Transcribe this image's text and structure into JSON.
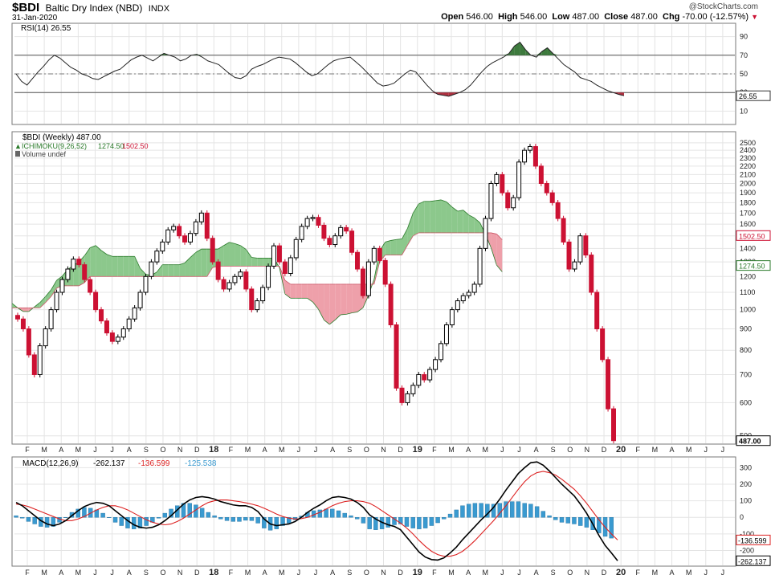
{
  "header": {
    "symbol": "$BDI",
    "name": "Baltic Dry Index (NBD)",
    "exchange": "INDX",
    "date": "31-Jan-2020",
    "watermark": "@StockCharts.com",
    "open_label": "Open",
    "open": "546.00",
    "high_label": "High",
    "high": "546.00",
    "low_label": "Low",
    "low": "487.00",
    "close_label": "Close",
    "close": "487.00",
    "chg_label": "Chg",
    "chg": "-70.00 (-12.57%)",
    "chg_arrow": "▼"
  },
  "colors": {
    "up": "#000000",
    "down": "#cc1133",
    "cloud_bull": "#8cc88c",
    "cloud_bear": "#eea0aa",
    "cloud_bull_line": "#2a7a2a",
    "cloud_bear_line": "#cc5566",
    "macd_hist": "#3a9ad0",
    "signal": "#dd2222",
    "grid": "#e4e4e4",
    "rsi_ob_fill": "#3d7a3d",
    "rsi_os_fill": "#b03040"
  },
  "chart_data": [
    {
      "type": "line",
      "panel": "RSI",
      "legend": "RSI(14) 26.55",
      "y_range": [
        0,
        100
      ],
      "y_ticks": [
        "90",
        "70",
        "50",
        "30",
        "10"
      ],
      "reference_lines": [
        70,
        50,
        30
      ],
      "last_value_label": "26.55",
      "series": [
        {
          "name": "RSI(14)",
          "values": [
            50,
            42,
            38,
            45,
            52,
            58,
            65,
            70,
            67,
            62,
            57,
            54,
            50,
            48,
            45,
            44,
            47,
            50,
            53,
            55,
            60,
            65,
            68,
            70,
            67,
            64,
            68,
            72,
            70,
            68,
            64,
            66,
            70,
            71,
            68,
            64,
            62,
            60,
            55,
            50,
            46,
            45,
            48,
            55,
            58,
            60,
            63,
            66,
            68,
            67,
            66,
            62,
            57,
            52,
            48,
            50,
            55,
            60,
            64,
            66,
            67,
            68,
            63,
            58,
            52,
            46,
            40,
            37,
            38,
            40,
            45,
            50,
            54,
            52,
            45,
            38,
            32,
            28,
            27,
            26,
            28,
            30,
            33,
            38,
            45,
            52,
            58,
            62,
            65,
            68,
            72,
            80,
            84,
            76,
            70,
            68,
            74,
            78,
            72,
            66,
            60,
            56,
            52,
            46,
            44,
            42,
            38,
            35,
            32,
            30,
            28,
            26.55
          ]
        }
      ]
    },
    {
      "type": "candlestick+ichimoku",
      "panel": "Price",
      "legend_price": "$BDI (Weekly) 487.00",
      "legend_ichimoku": "ICHIMOKU(9,26,52)",
      "ichimoku_senkou_a": "1274.50",
      "ichimoku_senkou_b": "1502.50",
      "legend_volume": "Volume undef",
      "scale": "log",
      "y_range": [
        480,
        2600
      ],
      "y_ticks": [
        "2500",
        "2400",
        "2300",
        "2200",
        "2100",
        "2000",
        "1900",
        "1800",
        "1700",
        "1600",
        "1500",
        "1400",
        "1300",
        "1200",
        "1100",
        "1000",
        "900",
        "800",
        "700",
        "600",
        "500"
      ],
      "last_close_label": "487.00",
      "x_labels": [
        "F",
        "M",
        "A",
        "M",
        "J",
        "J",
        "A",
        "S",
        "O",
        "N",
        "D",
        "18",
        "F",
        "M",
        "A",
        "M",
        "J",
        "J",
        "A",
        "S",
        "O",
        "N",
        "D",
        "19",
        "F",
        "M",
        "A",
        "M",
        "J",
        "J",
        "A",
        "S",
        "O",
        "N",
        "D",
        "20",
        "F",
        "M",
        "A",
        "M",
        "J",
        "J"
      ],
      "closes": [
        950,
        900,
        780,
        700,
        820,
        900,
        1000,
        1100,
        1180,
        1250,
        1320,
        1280,
        1180,
        1100,
        1000,
        940,
        880,
        840,
        860,
        900,
        950,
        1010,
        1100,
        1200,
        1300,
        1380,
        1450,
        1550,
        1580,
        1500,
        1450,
        1520,
        1620,
        1700,
        1480,
        1300,
        1180,
        1120,
        1160,
        1200,
        1230,
        1120,
        1000,
        1050,
        1130,
        1270,
        1420,
        1300,
        1220,
        1330,
        1470,
        1580,
        1650,
        1660,
        1590,
        1480,
        1430,
        1500,
        1570,
        1540,
        1370,
        1250,
        1080,
        1300,
        1400,
        1310,
        1150,
        920,
        650,
        600,
        630,
        660,
        700,
        680,
        720,
        760,
        830,
        920,
        1000,
        1050,
        1080,
        1100,
        1150,
        1400,
        1650,
        2000,
        2100,
        1900,
        1750,
        1850,
        2250,
        2400,
        2450,
        2200,
        2000,
        1900,
        1800,
        1650,
        1450,
        1250,
        1300,
        1500,
        1350,
        1100,
        900,
        760,
        580,
        487
      ]
    },
    {
      "type": "line+histogram",
      "panel": "MACD",
      "legend_macd": "MACD(12,26,9)",
      "macd_value": "-262.137",
      "signal_value": "-136.599",
      "hist_value": "-125.538",
      "y_range": [
        -290,
        360
      ],
      "y_ticks": [
        "300",
        "200",
        "100",
        "0",
        "-100",
        "-200"
      ],
      "last_signal_label": "-136.599",
      "last_macd_label": "-262.137",
      "series": [
        {
          "name": "MACD",
          "values": [
            90,
            70,
            40,
            10,
            -20,
            -40,
            -50,
            -40,
            -20,
            10,
            40,
            65,
            80,
            90,
            85,
            70,
            40,
            10,
            -20,
            -45,
            -60,
            -65,
            -60,
            -45,
            -20,
            10,
            45,
            80,
            105,
            120,
            125,
            120,
            110,
            95,
            85,
            75,
            70,
            70,
            60,
            35,
            -10,
            -40,
            -50,
            -45,
            -40,
            -25,
            0,
            30,
            55,
            75,
            100,
            120,
            125,
            120,
            110,
            90,
            60,
            15,
            -10,
            -30,
            -45,
            -55,
            -75,
            -120,
            -165,
            -210,
            -240,
            -255,
            -258,
            -245,
            -215,
            -180,
            -135,
            -95,
            -55,
            -15,
            20,
            60,
            110,
            165,
            215,
            265,
            300,
            330,
            335,
            315,
            280,
            240,
            200,
            165,
            130,
            80,
            25,
            -40,
            -110,
            -170,
            -215,
            -262.137
          ]
        },
        {
          "name": "Signal",
          "values": [
            80,
            75,
            65,
            50,
            35,
            20,
            5,
            -10,
            -20,
            -20,
            -10,
            5,
            25,
            45,
            60,
            70,
            70,
            60,
            45,
            25,
            5,
            -15,
            -30,
            -40,
            -45,
            -40,
            -25,
            -5,
            20,
            45,
            70,
            90,
            100,
            105,
            105,
            100,
            95,
            88,
            80,
            70,
            55,
            38,
            20,
            5,
            -5,
            -10,
            -8,
            0,
            15,
            30,
            50,
            70,
            85,
            95,
            100,
            100,
            95,
            85,
            65,
            40,
            15,
            -10,
            -35,
            -65,
            -100,
            -140,
            -175,
            -205,
            -225,
            -235,
            -235,
            -225,
            -205,
            -175,
            -140,
            -100,
            -60,
            -20,
            25,
            70,
            120,
            170,
            215,
            250,
            270,
            278,
            270,
            255,
            230,
            200,
            170,
            130,
            85,
            35,
            -15,
            -60,
            -100,
            -136.599
          ]
        },
        {
          "name": "Histogram",
          "values": [
            10,
            -5,
            -25,
            -40,
            -55,
            -60,
            -55,
            -30,
            0,
            30,
            50,
            60,
            55,
            45,
            25,
            0,
            -30,
            -50,
            -65,
            -70,
            -65,
            -50,
            -30,
            -5,
            25,
            50,
            70,
            85,
            85,
            75,
            55,
            30,
            10,
            -10,
            -20,
            -25,
            -25,
            -18,
            -20,
            -35,
            -65,
            -78,
            -70,
            -50,
            -35,
            -15,
            8,
            30,
            40,
            45,
            50,
            50,
            40,
            25,
            10,
            -10,
            -35,
            -70,
            -75,
            -70,
            -60,
            -45,
            -40,
            -55,
            -65,
            -70,
            -65,
            -50,
            -33,
            -10,
            20,
            45,
            70,
            80,
            85,
            85,
            80,
            80,
            85,
            95,
            95,
            95,
            85,
            80,
            65,
            37,
            10,
            -15,
            -30,
            -35,
            -40,
            -50,
            -60,
            -75,
            -94,
            -115,
            -125.538
          ]
        }
      ]
    }
  ]
}
